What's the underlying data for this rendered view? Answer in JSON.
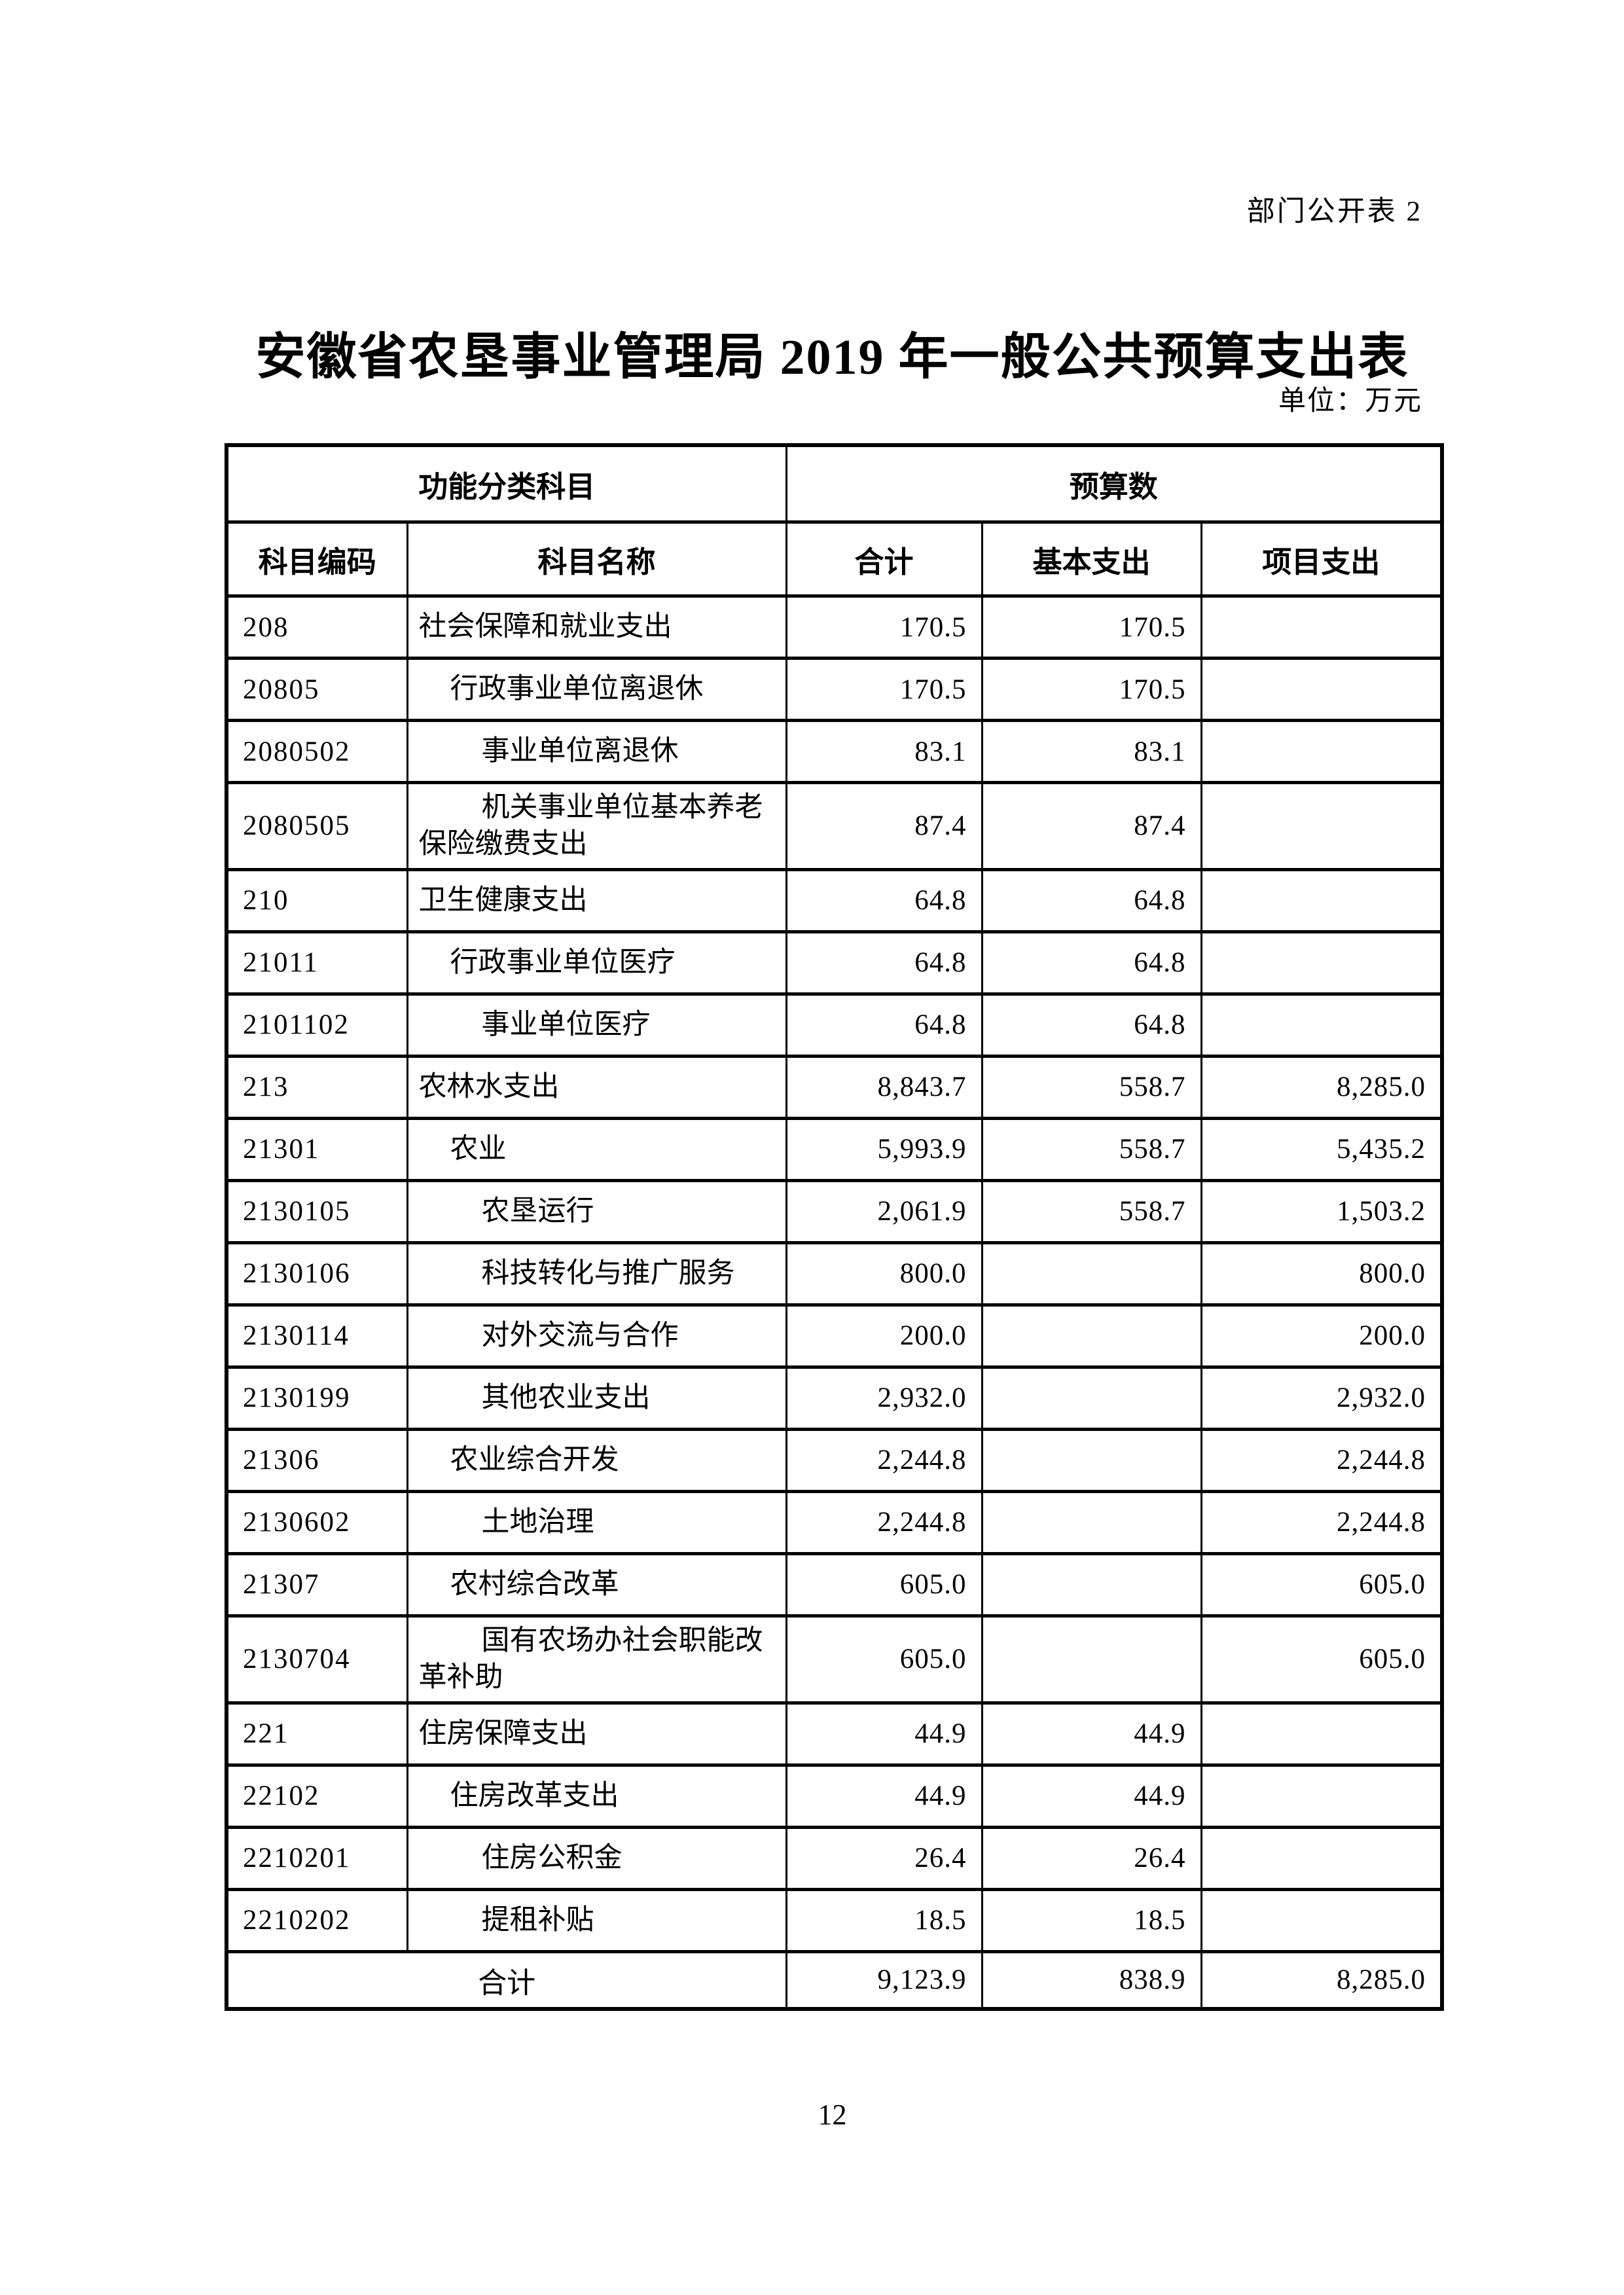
{
  "page": {
    "corner_label": "部门公开表 2",
    "title": "安徽省农垦事业管理局 2019 年一般公共预算支出表",
    "unit_label": "单位：万元",
    "page_number": "12"
  },
  "table": {
    "header": {
      "group_function": "功能分类科目",
      "group_budget": "预算数",
      "col_code": "科目编码",
      "col_name": "科目名称",
      "col_total": "合计",
      "col_basic": "基本支出",
      "col_project": "项目支出"
    },
    "rows": [
      {
        "code": "208",
        "name": "社会保障和就业支出",
        "indent": 1,
        "total": "170.5",
        "basic": "170.5",
        "project": ""
      },
      {
        "code": "20805",
        "name": "行政事业单位离退休",
        "indent": 2,
        "total": "170.5",
        "basic": "170.5",
        "project": ""
      },
      {
        "code": "2080502",
        "name": "事业单位离退休",
        "indent": 3,
        "total": "83.1",
        "basic": "83.1",
        "project": ""
      },
      {
        "code": "2080505",
        "name": "机关事业单位基本养老保险缴费支出",
        "indent": 3,
        "total": "87.4",
        "basic": "87.4",
        "project": ""
      },
      {
        "code": "210",
        "name": "卫生健康支出",
        "indent": 1,
        "total": "64.8",
        "basic": "64.8",
        "project": ""
      },
      {
        "code": "21011",
        "name": "行政事业单位医疗",
        "indent": 2,
        "total": "64.8",
        "basic": "64.8",
        "project": ""
      },
      {
        "code": "2101102",
        "name": "事业单位医疗",
        "indent": 3,
        "total": "64.8",
        "basic": "64.8",
        "project": ""
      },
      {
        "code": "213",
        "name": "农林水支出",
        "indent": 1,
        "total": "8,843.7",
        "basic": "558.7",
        "project": "8,285.0"
      },
      {
        "code": "21301",
        "name": "农业",
        "indent": 2,
        "total": "5,993.9",
        "basic": "558.7",
        "project": "5,435.2"
      },
      {
        "code": "2130105",
        "name": "农垦运行",
        "indent": 3,
        "total": "2,061.9",
        "basic": "558.7",
        "project": "1,503.2"
      },
      {
        "code": "2130106",
        "name": "科技转化与推广服务",
        "indent": 3,
        "total": "800.0",
        "basic": "",
        "project": "800.0"
      },
      {
        "code": "2130114",
        "name": "对外交流与合作",
        "indent": 3,
        "total": "200.0",
        "basic": "",
        "project": "200.0"
      },
      {
        "code": "2130199",
        "name": "其他农业支出",
        "indent": 3,
        "total": "2,932.0",
        "basic": "",
        "project": "2,932.0"
      },
      {
        "code": "21306",
        "name": "农业综合开发",
        "indent": 2,
        "total": "2,244.8",
        "basic": "",
        "project": "2,244.8"
      },
      {
        "code": "2130602",
        "name": "土地治理",
        "indent": 3,
        "total": "2,244.8",
        "basic": "",
        "project": "2,244.8"
      },
      {
        "code": "21307",
        "name": "农村综合改革",
        "indent": 2,
        "total": "605.0",
        "basic": "",
        "project": "605.0"
      },
      {
        "code": "2130704",
        "name": "国有农场办社会职能改革补助",
        "indent": 3,
        "total": "605.0",
        "basic": "",
        "project": "605.0"
      },
      {
        "code": "221",
        "name": "住房保障支出",
        "indent": 1,
        "total": "44.9",
        "basic": "44.9",
        "project": ""
      },
      {
        "code": "22102",
        "name": "住房改革支出",
        "indent": 2,
        "total": "44.9",
        "basic": "44.9",
        "project": ""
      },
      {
        "code": "2210201",
        "name": "住房公积金",
        "indent": 3,
        "total": "26.4",
        "basic": "26.4",
        "project": ""
      },
      {
        "code": "2210202",
        "name": "提租补贴",
        "indent": 3,
        "total": "18.5",
        "basic": "18.5",
        "project": ""
      }
    ],
    "footer": {
      "label": "合计",
      "total": "9,123.9",
      "basic": "838.9",
      "project": "8,285.0"
    }
  }
}
